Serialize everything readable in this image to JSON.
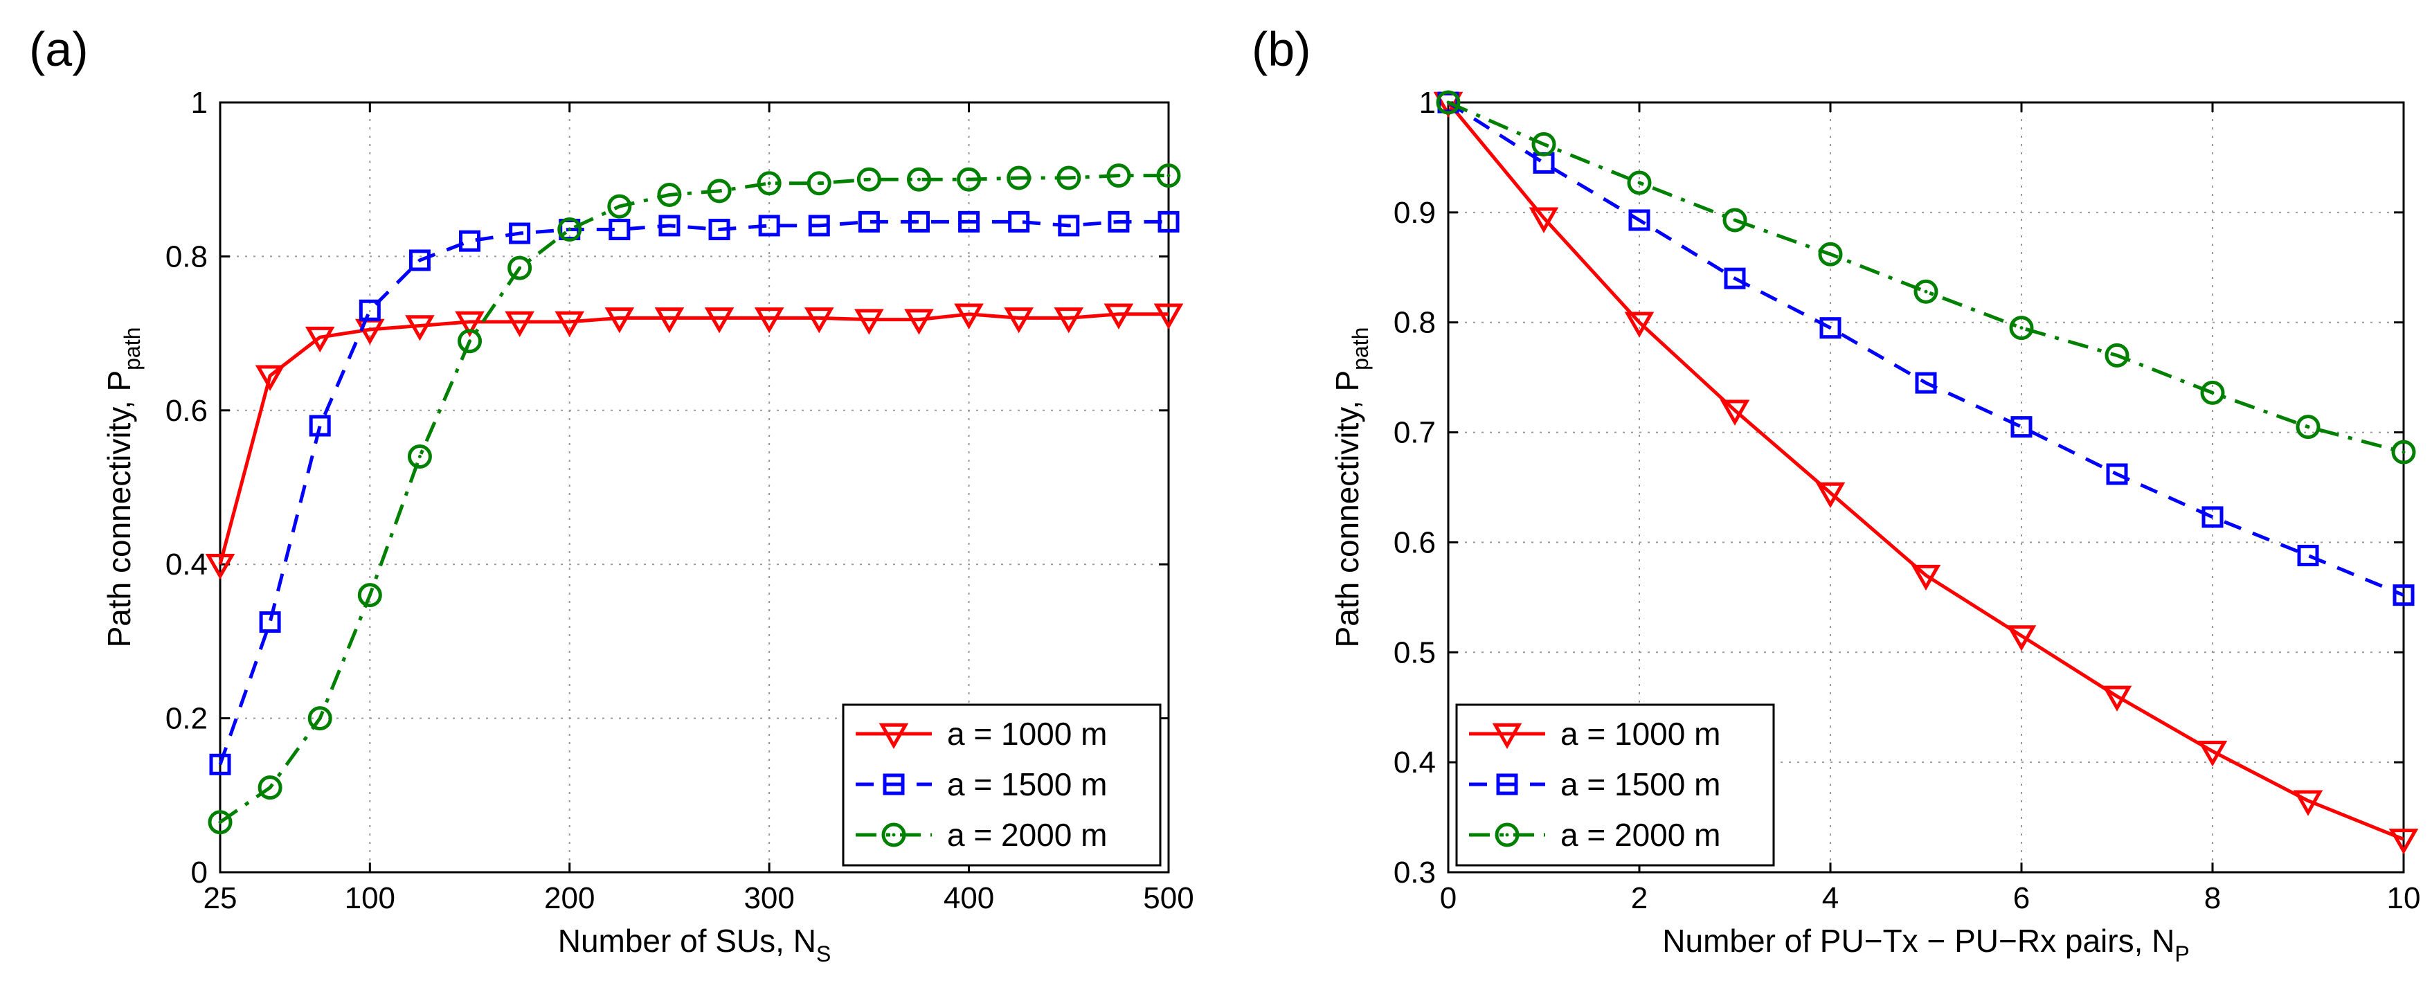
{
  "chart_data": [
    {
      "type": "line",
      "panel_label": "(a)",
      "xlabel": "Number of SUs, N",
      "xlabel_sub": "S",
      "ylabel": "Path connectivity, P",
      "ylabel_sub": "path",
      "xlim": [
        25,
        500
      ],
      "ylim": [
        0,
        1
      ],
      "xticks": [
        25,
        100,
        200,
        300,
        400,
        500
      ],
      "xtick_labels": [
        "25",
        "100",
        "200",
        "300",
        "400",
        "500"
      ],
      "yticks": [
        0,
        0.2,
        0.4,
        0.6,
        0.8,
        1
      ],
      "ytick_labels": [
        "0",
        "0.2",
        "0.4",
        "0.6",
        "0.8",
        "1"
      ],
      "grid": true,
      "legend_position": "bottom-right",
      "x": [
        25,
        50,
        75,
        100,
        125,
        150,
        175,
        200,
        225,
        250,
        275,
        300,
        325,
        350,
        375,
        400,
        425,
        450,
        475,
        500
      ],
      "series": [
        {
          "name": "a = 1000 m",
          "color": "#ff0000",
          "marker": "triangle-down",
          "linestyle": "solid",
          "values": [
            0.4,
            0.645,
            0.695,
            0.705,
            0.71,
            0.715,
            0.715,
            0.715,
            0.72,
            0.72,
            0.72,
            0.72,
            0.72,
            0.718,
            0.718,
            0.725,
            0.72,
            0.72,
            0.725,
            0.725
          ]
        },
        {
          "name": "a = 1500 m",
          "color": "#0000ff",
          "marker": "square",
          "linestyle": "dashed",
          "values": [
            0.14,
            0.325,
            0.58,
            0.73,
            0.795,
            0.82,
            0.83,
            0.835,
            0.835,
            0.84,
            0.835,
            0.84,
            0.84,
            0.845,
            0.845,
            0.845,
            0.845,
            0.84,
            0.845,
            0.845
          ]
        },
        {
          "name": "a = 2000 m",
          "color": "#008000",
          "marker": "circle",
          "linestyle": "dashdot",
          "values": [
            0.065,
            0.11,
            0.2,
            0.36,
            0.54,
            0.69,
            0.785,
            0.835,
            0.865,
            0.88,
            0.885,
            0.895,
            0.895,
            0.9,
            0.9,
            0.9,
            0.902,
            0.902,
            0.905,
            0.905
          ]
        }
      ]
    },
    {
      "type": "line",
      "panel_label": "(b)",
      "xlabel": "Number of PU−Tx − PU−Rx pairs, N",
      "xlabel_sub": "P",
      "ylabel": "Path connectivity, P",
      "ylabel_sub": "path",
      "xlim": [
        0,
        10
      ],
      "ylim": [
        0.3,
        1
      ],
      "xticks": [
        0,
        2,
        4,
        6,
        8,
        10
      ],
      "xtick_labels": [
        "0",
        "2",
        "4",
        "6",
        "8",
        "10"
      ],
      "yticks": [
        0.3,
        0.4,
        0.5,
        0.6,
        0.7,
        0.8,
        0.9,
        1
      ],
      "ytick_labels": [
        "0.3",
        "0.4",
        "0.5",
        "0.6",
        "0.7",
        "0.8",
        "0.9",
        "1"
      ],
      "grid": true,
      "legend_position": "bottom-left",
      "x": [
        0,
        1,
        2,
        3,
        4,
        5,
        6,
        7,
        8,
        9,
        10
      ],
      "series": [
        {
          "name": "a = 1000 m",
          "color": "#ff0000",
          "marker": "triangle-down",
          "linestyle": "solid",
          "values": [
            1.0,
            0.895,
            0.8,
            0.72,
            0.645,
            0.57,
            0.515,
            0.46,
            0.41,
            0.365,
            0.33
          ]
        },
        {
          "name": "a = 1500 m",
          "color": "#0000ff",
          "marker": "square",
          "linestyle": "dashed",
          "values": [
            1.0,
            0.945,
            0.893,
            0.84,
            0.795,
            0.745,
            0.705,
            0.662,
            0.623,
            0.588,
            0.552
          ]
        },
        {
          "name": "a = 2000 m",
          "color": "#008000",
          "marker": "circle",
          "linestyle": "dashdot",
          "values": [
            1.0,
            0.962,
            0.927,
            0.893,
            0.862,
            0.828,
            0.795,
            0.77,
            0.736,
            0.705,
            0.682
          ]
        }
      ]
    }
  ]
}
